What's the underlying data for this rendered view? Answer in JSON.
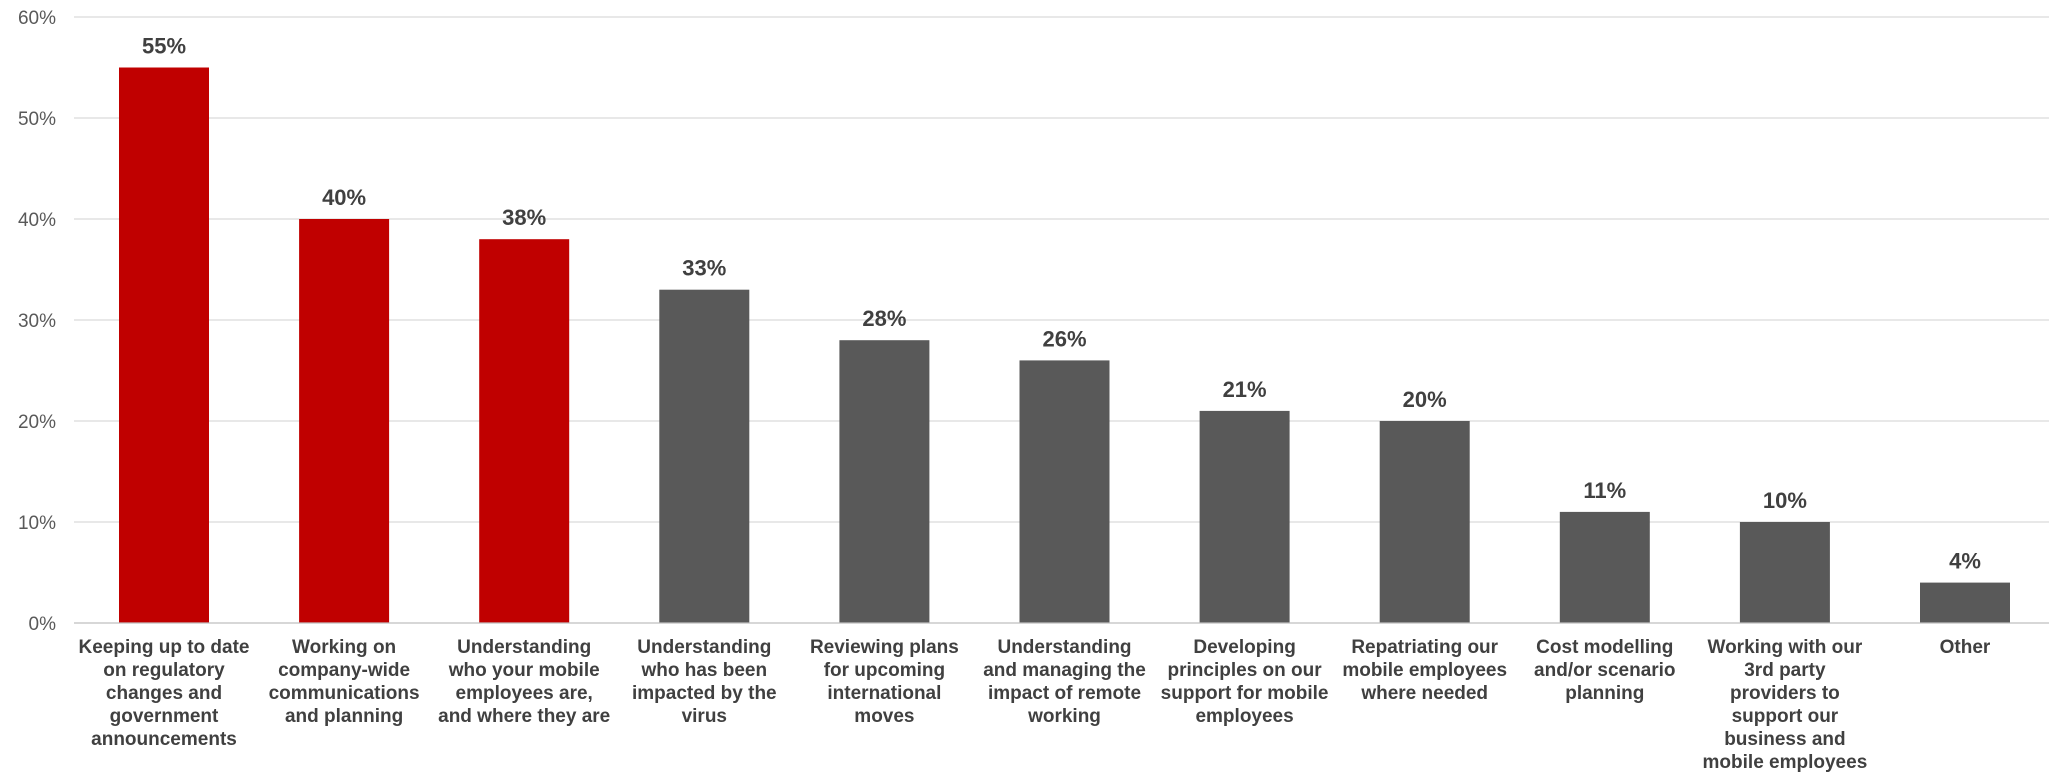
{
  "chart_data": {
    "type": "bar",
    "categories": [
      [
        "Keeping up to date",
        "on regulatory",
        "changes and",
        "government",
        "announcements"
      ],
      [
        "Working on",
        "company-wide",
        "communications",
        "and planning"
      ],
      [
        "Understanding",
        "who your mobile",
        "employees are,",
        "and where they are"
      ],
      [
        "Understanding",
        "who has been",
        "impacted by the",
        "virus"
      ],
      [
        "Reviewing plans",
        "for upcoming",
        "international",
        "moves"
      ],
      [
        "Understanding",
        "and managing the",
        "impact of remote",
        "working"
      ],
      [
        "Developing",
        "principles on our",
        "support for mobile",
        "employees"
      ],
      [
        "Repatriating our",
        "mobile employees",
        "where needed"
      ],
      [
        "Cost modelling",
        "and/or scenario",
        "planning"
      ],
      [
        "Working with our",
        "3rd party",
        "providers to",
        "support our",
        "business and",
        "mobile employees"
      ],
      [
        "Other"
      ]
    ],
    "values": [
      55,
      40,
      38,
      33,
      28,
      26,
      21,
      20,
      11,
      10,
      4
    ],
    "data_labels": [
      "55%",
      "40%",
      "38%",
      "33%",
      "28%",
      "26%",
      "21%",
      "20%",
      "11%",
      "10%",
      "4%"
    ],
    "highlighted": [
      true,
      true,
      true,
      false,
      false,
      false,
      false,
      false,
      false,
      false,
      false
    ],
    "colors": {
      "highlight": "#c00000",
      "default": "#595959"
    },
    "ylim": [
      0,
      60
    ],
    "yticks": [
      0,
      10,
      20,
      30,
      40,
      50,
      60
    ],
    "ytick_labels": [
      "0%",
      "10%",
      "20%",
      "30%",
      "40%",
      "50%",
      "60%"
    ],
    "grid": true,
    "legend": "none"
  }
}
